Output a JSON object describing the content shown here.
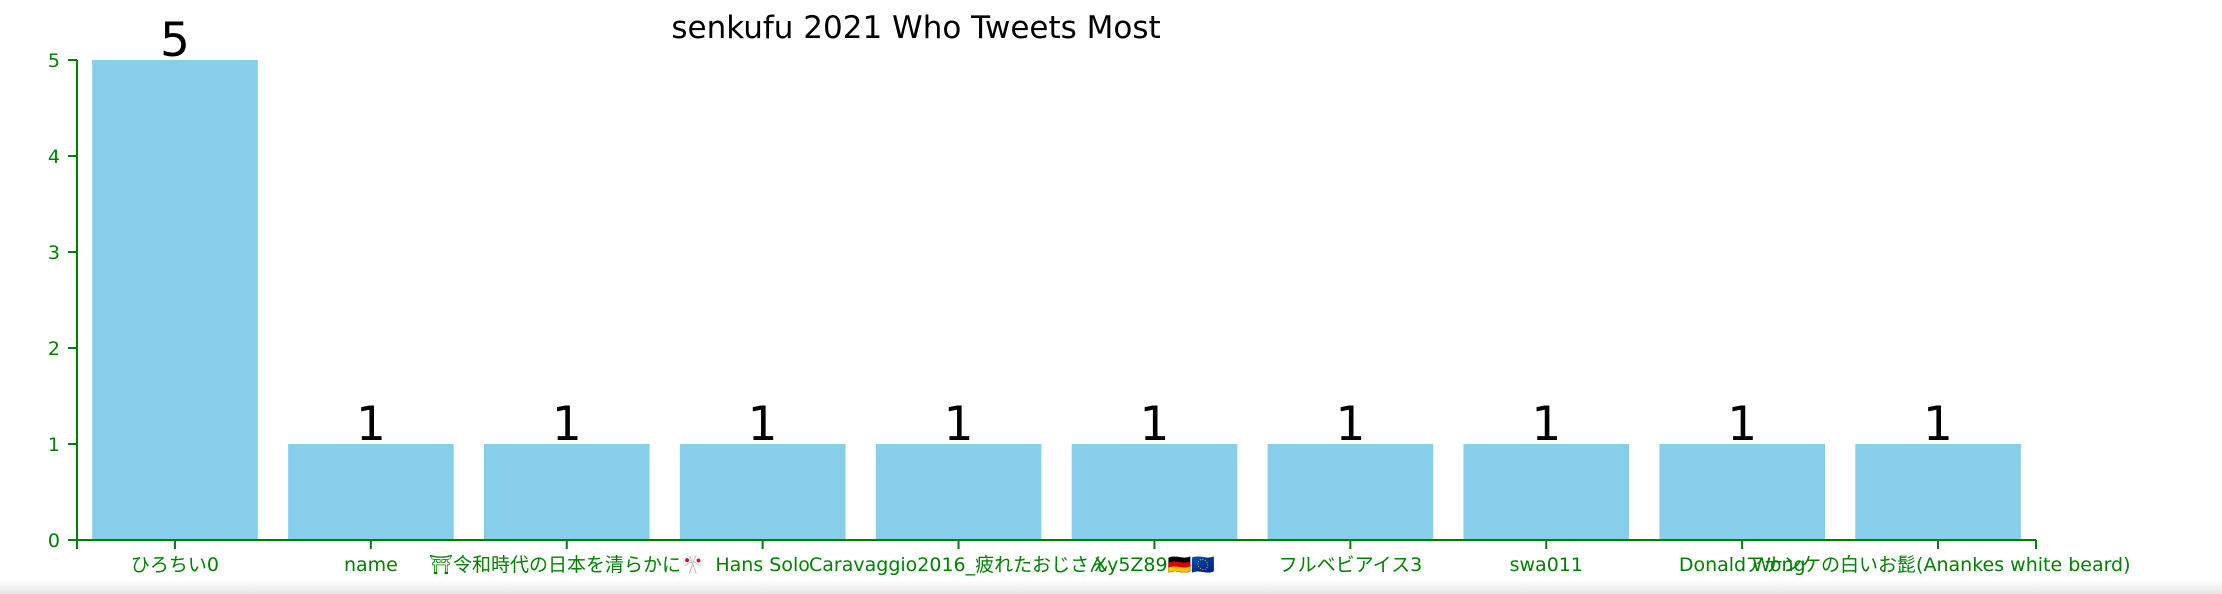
{
  "chart_data": {
    "type": "bar",
    "title": "senkufu 2021 Who Tweets Most",
    "xlabel": "",
    "ylabel": "",
    "categories": [
      "ひろちい0",
      "name",
      "⛩令和時代の日本を清らかに🎌",
      "Hans Solo",
      "Caravaggio2016_疲れたおじさん",
      "Xy5Z89🇩🇪🇪🇺",
      "フルベビアイス3",
      "swa011",
      "Donald Wong",
      "アナンケの白いお髭(Anankes white beard)"
    ],
    "values": [
      5,
      1,
      1,
      1,
      1,
      1,
      1,
      1,
      1,
      1
    ],
    "value_labels": [
      "5",
      "1",
      "1",
      "1",
      "1",
      "1",
      "1",
      "1",
      "1",
      "1"
    ],
    "y_ticks": [
      0,
      1,
      2,
      3,
      4,
      5
    ],
    "ylim": [
      0,
      5
    ],
    "grid": false,
    "legend": "none",
    "colors": {
      "bar": "#87CEEB",
      "axis": "#008000",
      "tick_label": "#008000",
      "title": "#000000",
      "value_label": "#000000"
    }
  }
}
